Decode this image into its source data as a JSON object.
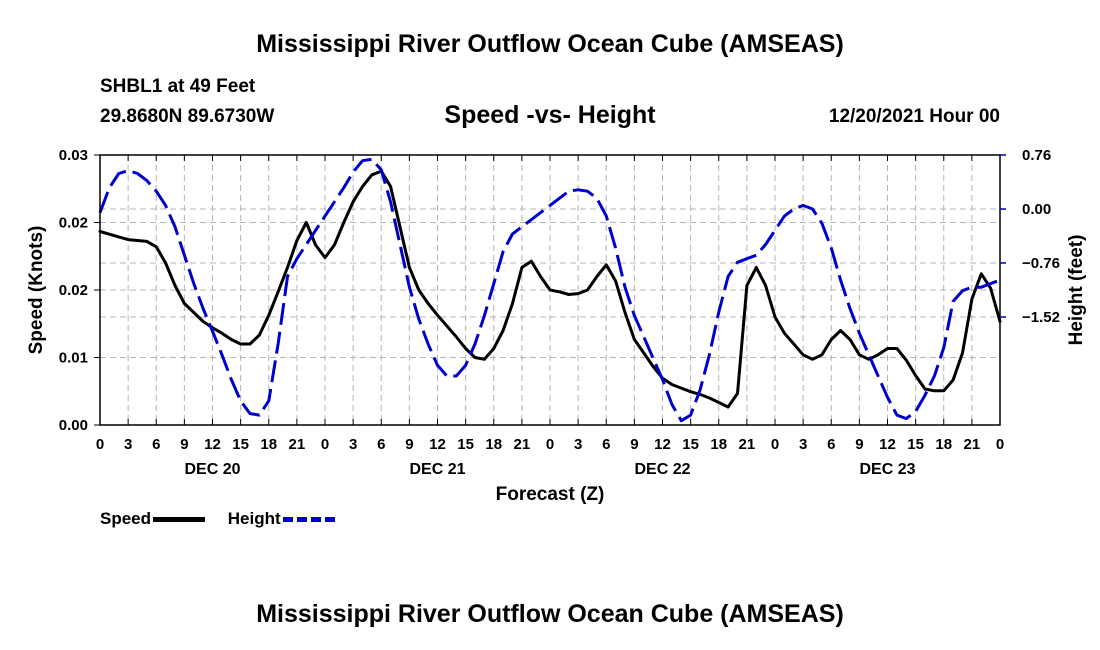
{
  "page": {
    "title_top": "Mississippi River Outflow Ocean Cube (AMSEAS)",
    "title_bottom": "Mississippi River Outflow Ocean Cube (AMSEAS)",
    "station": "SHBL1 at 49 Feet",
    "coords": "29.8680N  89.6730W",
    "subtitle": "Speed -vs- Height",
    "datetime": "12/20/2021 Hour 00"
  },
  "legend": {
    "speed": "Speed",
    "height": "Height"
  },
  "chart_data": {
    "type": "line",
    "title": "Speed -vs- Height",
    "xlabel": "Forecast (Z)",
    "ylabel": "Speed (Knots)",
    "y2label": "Height (feet)",
    "xlim": [
      0,
      96
    ],
    "ylim": [
      0,
      0.03
    ],
    "y2lim": [
      -3.04,
      0.76
    ],
    "x_ticks": [
      {
        "x": 0,
        "label": "0"
      },
      {
        "x": 3,
        "label": "3"
      },
      {
        "x": 6,
        "label": "6"
      },
      {
        "x": 9,
        "label": "9"
      },
      {
        "x": 12,
        "label": "12"
      },
      {
        "x": 15,
        "label": "15"
      },
      {
        "x": 18,
        "label": "18"
      },
      {
        "x": 21,
        "label": "21"
      },
      {
        "x": 24,
        "label": "0"
      },
      {
        "x": 27,
        "label": "3"
      },
      {
        "x": 30,
        "label": "6"
      },
      {
        "x": 33,
        "label": "9"
      },
      {
        "x": 36,
        "label": "12"
      },
      {
        "x": 39,
        "label": "15"
      },
      {
        "x": 42,
        "label": "18"
      },
      {
        "x": 45,
        "label": "21"
      },
      {
        "x": 48,
        "label": "0"
      },
      {
        "x": 51,
        "label": "3"
      },
      {
        "x": 54,
        "label": "6"
      },
      {
        "x": 57,
        "label": "9"
      },
      {
        "x": 60,
        "label": "12"
      },
      {
        "x": 63,
        "label": "15"
      },
      {
        "x": 66,
        "label": "18"
      },
      {
        "x": 69,
        "label": "21"
      },
      {
        "x": 72,
        "label": "0"
      },
      {
        "x": 75,
        "label": "3"
      },
      {
        "x": 78,
        "label": "6"
      },
      {
        "x": 81,
        "label": "9"
      },
      {
        "x": 84,
        "label": "12"
      },
      {
        "x": 87,
        "label": "15"
      },
      {
        "x": 90,
        "label": "18"
      },
      {
        "x": 93,
        "label": "21"
      },
      {
        "x": 96,
        "label": "0"
      }
    ],
    "day_labels": [
      {
        "x": 12,
        "label": "DEC 20"
      },
      {
        "x": 36,
        "label": "DEC 21"
      },
      {
        "x": 60,
        "label": "DEC 22"
      },
      {
        "x": 84,
        "label": "DEC 23"
      }
    ],
    "y_ticks": [
      {
        "value": 0,
        "label": "0.00"
      },
      {
        "value": 0.0075,
        "label": "0.01"
      },
      {
        "value": 0.015,
        "label": "0.02"
      },
      {
        "value": 0.0225,
        "label": "0.02"
      },
      {
        "value": 0.03,
        "label": "0.03"
      }
    ],
    "y2_ticks": [
      {
        "value": 0.76,
        "label": "0.76"
      },
      {
        "value": 0.0,
        "label": "0.00"
      },
      {
        "value": -0.76,
        "label": "−0.76"
      },
      {
        "value": -1.52,
        "label": "−1.52"
      }
    ],
    "grid": true,
    "series": [
      {
        "name": "Speed",
        "axis": "left",
        "color": "#000000",
        "style": "solid",
        "x": [
          0,
          1,
          2,
          3,
          4,
          5,
          6,
          7,
          8,
          9,
          10,
          11,
          12,
          13,
          14,
          15,
          16,
          17,
          18,
          19,
          20,
          21,
          22,
          23,
          24,
          25,
          26,
          27,
          28,
          29,
          30,
          31,
          32,
          33,
          34,
          35,
          36,
          37,
          38,
          39,
          40,
          41,
          42,
          43,
          44,
          45,
          46,
          47,
          48,
          49,
          50,
          51,
          52,
          53,
          54,
          55,
          56,
          57,
          58,
          59,
          60,
          61,
          62,
          63,
          64,
          65,
          66,
          67,
          68,
          69,
          70,
          71,
          72,
          73,
          74,
          75,
          76,
          77,
          78,
          79,
          80,
          81,
          82,
          83,
          84,
          85,
          86,
          87,
          88,
          89,
          90,
          91,
          92,
          93,
          94,
          95,
          96
        ],
        "values": [
          0.0215,
          0.0212,
          0.0209,
          0.0206,
          0.0205,
          0.0204,
          0.0198,
          0.018,
          0.0155,
          0.0135,
          0.0125,
          0.0115,
          0.0108,
          0.0102,
          0.0095,
          0.009,
          0.009,
          0.01,
          0.0122,
          0.0148,
          0.0175,
          0.0205,
          0.0225,
          0.02,
          0.0186,
          0.02,
          0.0225,
          0.0248,
          0.0265,
          0.0278,
          0.0282,
          0.0265,
          0.022,
          0.0175,
          0.015,
          0.0135,
          0.0122,
          0.011,
          0.0098,
          0.0085,
          0.0075,
          0.0073,
          0.0085,
          0.0105,
          0.0135,
          0.0175,
          0.0182,
          0.0165,
          0.015,
          0.0148,
          0.0145,
          0.0146,
          0.015,
          0.0165,
          0.0178,
          0.016,
          0.0125,
          0.0095,
          0.008,
          0.0065,
          0.0052,
          0.0045,
          0.0041,
          0.0037,
          0.0034,
          0.003,
          0.0025,
          0.002,
          0.0035,
          0.0155,
          0.0175,
          0.0155,
          0.012,
          0.0102,
          0.009,
          0.0078,
          0.0073,
          0.0078,
          0.0095,
          0.0105,
          0.0095,
          0.0078,
          0.0073,
          0.0078,
          0.0085,
          0.0085,
          0.0072,
          0.0055,
          0.004,
          0.0038,
          0.0038,
          0.005,
          0.008,
          0.014,
          0.0168,
          0.0152,
          0.0115
        ]
      },
      {
        "name": "Height",
        "axis": "right",
        "color": "#0000cc",
        "style": "dashed",
        "x": [
          0,
          1,
          2,
          3,
          4,
          5,
          6,
          7,
          8,
          9,
          10,
          11,
          12,
          13,
          14,
          15,
          16,
          17,
          18,
          19,
          20,
          21,
          22,
          23,
          24,
          25,
          26,
          27,
          28,
          29,
          30,
          31,
          32,
          33,
          34,
          35,
          36,
          37,
          38,
          39,
          40,
          41,
          42,
          43,
          44,
          45,
          46,
          47,
          48,
          49,
          50,
          51,
          52,
          53,
          54,
          55,
          56,
          57,
          58,
          59,
          60,
          61,
          62,
          63,
          64,
          65,
          66,
          67,
          68,
          69,
          70,
          71,
          72,
          73,
          74,
          75,
          76,
          77,
          78,
          79,
          80,
          81,
          82,
          83,
          84,
          85,
          86,
          87,
          88,
          89,
          90,
          91,
          92,
          93,
          94,
          95,
          96
        ],
        "values": [
          -0.05,
          0.3,
          0.5,
          0.54,
          0.5,
          0.4,
          0.25,
          0.05,
          -0.25,
          -0.65,
          -1.05,
          -1.4,
          -1.72,
          -2.05,
          -2.4,
          -2.7,
          -2.88,
          -2.9,
          -2.7,
          -1.9,
          -0.95,
          -0.7,
          -0.5,
          -0.3,
          -0.1,
          0.1,
          0.3,
          0.52,
          0.68,
          0.7,
          0.55,
          0.1,
          -0.5,
          -1.1,
          -1.55,
          -1.9,
          -2.2,
          -2.35,
          -2.35,
          -2.2,
          -1.9,
          -1.5,
          -1.05,
          -0.6,
          -0.35,
          -0.25,
          -0.15,
          -0.05,
          0.05,
          0.15,
          0.25,
          0.27,
          0.25,
          0.15,
          -0.1,
          -0.55,
          -1.1,
          -1.5,
          -1.8,
          -2.1,
          -2.4,
          -2.75,
          -2.98,
          -2.9,
          -2.55,
          -2.05,
          -1.45,
          -0.95,
          -0.75,
          -0.7,
          -0.65,
          -0.5,
          -0.3,
          -0.1,
          0.0,
          0.05,
          0.0,
          -0.2,
          -0.55,
          -1.0,
          -1.4,
          -1.75,
          -2.05,
          -2.35,
          -2.65,
          -2.9,
          -2.95,
          -2.85,
          -2.62,
          -2.35,
          -1.95,
          -1.3,
          -1.15,
          -1.1,
          -1.1,
          -1.05,
          -1.0
        ]
      }
    ]
  }
}
